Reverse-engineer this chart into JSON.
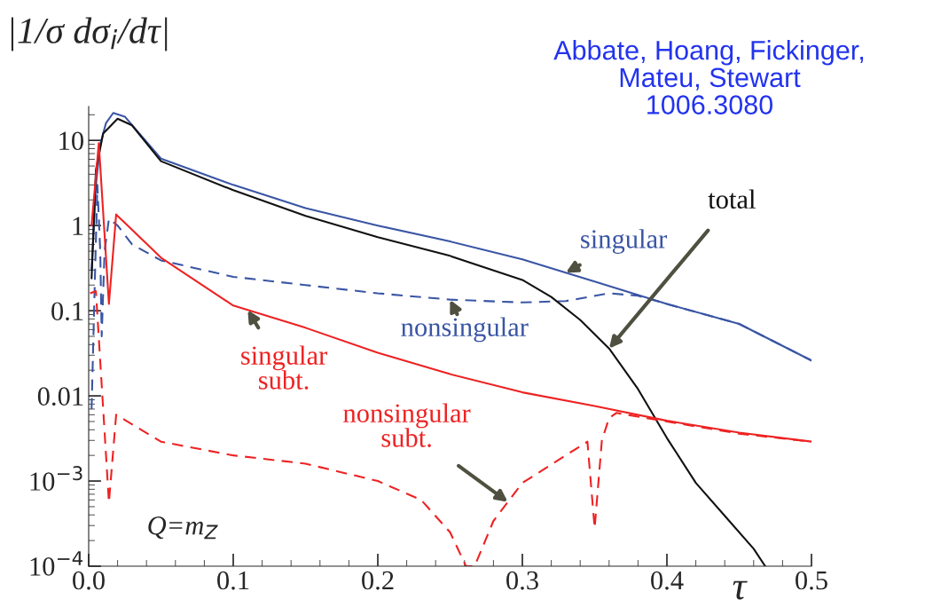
{
  "chart_data": {
    "type": "line",
    "xlabel": "τ",
    "ylabel": "|1/σ dσ$_{i}$/dτ|",
    "log": "y",
    "xlim": [
      0,
      0.5
    ],
    "ylim": [
      0.0001,
      25
    ],
    "xticks": [
      {
        "value": 0,
        "label": "0.0"
      },
      0.1,
      0.2,
      0.3,
      0.4,
      0.5
    ],
    "yticks": [
      {
        "value": 0.0001,
        "label": "10$^{−4}$"
      },
      {
        "value": 0.001,
        "label": "10$^{−3}$"
      },
      0.01,
      0.1,
      1,
      10
    ],
    "grid": false,
    "line_style": "solid",
    "annotations": [
      "Abbate, Hoang, Fickinger,\nMateu, Stewart\n1006.3080",
      "Q=m$_{Z}$"
    ],
    "series": [
      {
        "name": "singular",
        "color": "#3a55a4",
        "x": [
          0.002,
          0.005,
          0.008,
          0.012,
          0.017,
          0.025,
          0.05,
          0.1,
          0.15,
          0.2,
          0.25,
          0.3,
          0.35,
          0.4,
          0.45,
          0.5
        ],
        "values": [
          0.3,
          3,
          9,
          16,
          21,
          19,
          6.1,
          3.0,
          1.6,
          1.0,
          0.65,
          0.4,
          0.22,
          0.12,
          0.07,
          0.026
        ]
      },
      {
        "name": "nonsingular",
        "color": "#3a55a4",
        "line_style": "dashed",
        "x": [
          0.002,
          0.004,
          0.006,
          0.008,
          0.009,
          0.011,
          0.014,
          0.02,
          0.03,
          0.05,
          0.1,
          0.15,
          0.2,
          0.25,
          0.3,
          0.33,
          0.36,
          0.38,
          0.4,
          0.45,
          0.5
        ],
        "values": [
          0.007,
          0.15,
          3,
          0.5,
          0.05,
          0.5,
          1.2,
          1.0,
          0.6,
          0.39,
          0.25,
          0.2,
          0.16,
          0.135,
          0.125,
          0.13,
          0.16,
          0.15,
          0.12,
          0.07,
          0.026
        ]
      },
      {
        "name": "total",
        "color": "#111111",
        "x": [
          0.002,
          0.005,
          0.01,
          0.02,
          0.03,
          0.05,
          0.1,
          0.15,
          0.2,
          0.25,
          0.3,
          0.32,
          0.34,
          0.36,
          0.38,
          0.4,
          0.42,
          0.44,
          0.46,
          0.468
        ],
        "values": [
          0.24,
          4.5,
          12,
          18,
          15,
          5.7,
          2.6,
          1.3,
          0.73,
          0.44,
          0.23,
          0.145,
          0.078,
          0.036,
          0.012,
          0.0032,
          0.00095,
          0.00039,
          0.00016,
          0.0001
        ]
      },
      {
        "name": "singular\nsubt.",
        "color": "#ee2222",
        "x": [
          0.002,
          0.007,
          0.014,
          0.019,
          0.05,
          0.1,
          0.15,
          0.2,
          0.25,
          0.3,
          0.35,
          0.4,
          0.45,
          0.5
        ],
        "values": [
          1.0,
          9.3,
          0.12,
          1.35,
          0.42,
          0.115,
          0.063,
          0.032,
          0.018,
          0.011,
          0.0076,
          0.0051,
          0.0037,
          0.0029
        ]
      },
      {
        "name": "nonsingular\nsubt.",
        "color": "#ee2222",
        "line_style": "dashed",
        "x": [
          0.001,
          0.005,
          0.014,
          0.019,
          0.05,
          0.1,
          0.15,
          0.2,
          0.23,
          0.25,
          0.261,
          0.267,
          0.28,
          0.3,
          0.33,
          0.345,
          0.35,
          0.355,
          0.36,
          0.365,
          0.4,
          0.45,
          0.5
        ],
        "values": [
          0.16,
          0.17,
          0.00056,
          0.006,
          0.0029,
          0.002,
          0.0016,
          0.001,
          0.0006,
          0.00025,
          0.0001,
          0.0001,
          0.00034,
          0.00095,
          0.002,
          0.0029,
          0.00028,
          0.003,
          0.0055,
          0.0063,
          0.005,
          0.0036,
          0.0029
        ]
      }
    ]
  }
}
